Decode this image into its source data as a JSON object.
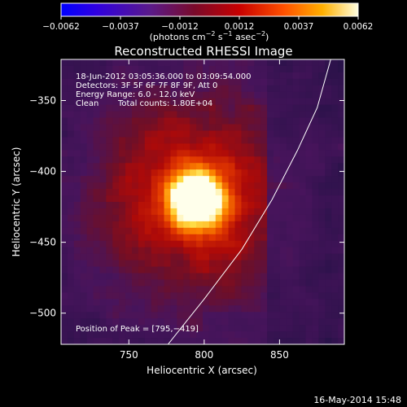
{
  "chart_data": {
    "type": "heatmap",
    "title": "Reconstructed RHESSI Image",
    "xlabel": "Heliocentric X (arcsec)",
    "ylabel": "Heliocentric Y (arcsec)",
    "xlim": [
      705,
      893
    ],
    "ylim": [
      -522,
      -321
    ],
    "x_ticks": [
      750,
      800,
      850
    ],
    "y_ticks": [
      -350,
      -400,
      -450,
      -500
    ],
    "x_tick_labels": [
      "750",
      "800",
      "850"
    ],
    "y_tick_labels": [
      "−350",
      "−400",
      "−450",
      "−500"
    ],
    "colorbar": {
      "min": -0.0062,
      "max": 0.0062,
      "tick_labels": [
        "−0.0062",
        "−0.0037",
        "−0.0012",
        "0.0012",
        "0.0037",
        "0.0062"
      ],
      "unit_label": [
        "(photons cm",
        "−2",
        " s",
        "−1",
        " asec",
        "−2",
        ")"
      ],
      "colormap": "blue-purple-red-yellow-white"
    },
    "annotations": {
      "time_range": "18-Jun-2012 03:05:36.000 to 03:09:54.000",
      "detectors": "Detectors: 3F 5F 6F 7F 8F 9F, Att 0",
      "energy": "Energy Range: 6.0 - 12.0 keV",
      "clean": "Clean",
      "total_counts": "Total counts: 1.80E+04",
      "peak": "Position of Peak = [795,−419]"
    },
    "peak": {
      "x": 795,
      "y": -419,
      "value": 0.0062
    },
    "limb_curve": [
      {
        "x": 776,
        "y": -522
      },
      {
        "x": 800,
        "y": -490
      },
      {
        "x": 825,
        "y": -455
      },
      {
        "x": 845,
        "y": -420
      },
      {
        "x": 862,
        "y": -385
      },
      {
        "x": 875,
        "y": -355
      },
      {
        "x": 884,
        "y": -321
      }
    ]
  },
  "footer": {
    "date_stamp": "16-May-2014 15:48"
  },
  "colors": {
    "background": "#000000",
    "text": "#ffffff",
    "limb": "#ffffff"
  }
}
